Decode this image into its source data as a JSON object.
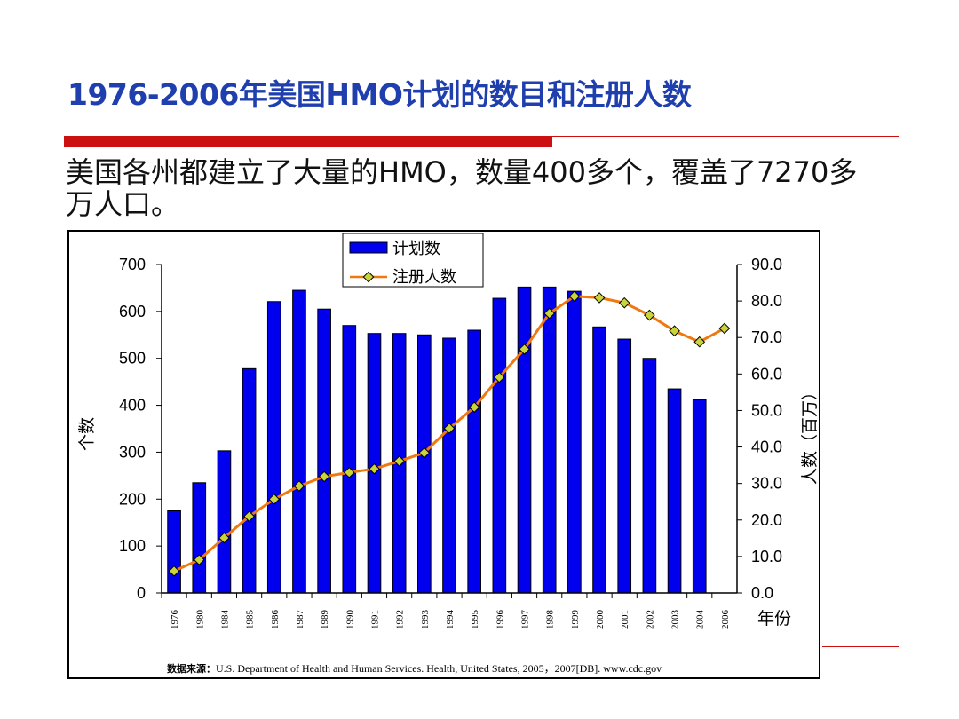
{
  "title": "1976-2006年美国HMO计划的数目和注册人数",
  "body_text": "美国各州都建立了大量的HMO，数量400多个，覆盖了7270多万人口。",
  "source": {
    "label": "数据来源：",
    "text": "U.S. Department of Health and Human Services. Health, United States, 2005，2007[DB]. www.cdc.gov"
  },
  "colors": {
    "title": "#1f3fae",
    "bar_fill": "#0000ee",
    "line": "#f07810",
    "marker": "#c8d43a",
    "rule": "#cc1010"
  },
  "chart_data": {
    "type": "bar",
    "categories": [
      "1976",
      "1980",
      "1984",
      "1985",
      "1986",
      "1987",
      "1989",
      "1990",
      "1991",
      "1992",
      "1993",
      "1994",
      "1995",
      "1996",
      "1997",
      "1998",
      "1999",
      "2000",
      "2001",
      "2002",
      "2003",
      "2004",
      "2006"
    ],
    "series": [
      {
        "name": "计划数",
        "type": "bar",
        "axis": "left",
        "values": [
          175,
          235,
          303,
          478,
          621,
          645,
          605,
          570,
          553,
          553,
          550,
          543,
          560,
          628,
          652,
          652,
          643,
          567,
          541,
          500,
          435,
          412,
          null
        ]
      },
      {
        "name": "注册人数",
        "type": "line",
        "axis": "right",
        "values": [
          6.0,
          9.1,
          15.1,
          21.0,
          25.7,
          29.3,
          31.9,
          33.0,
          34.0,
          36.1,
          38.4,
          45.1,
          50.9,
          59.1,
          66.8,
          76.6,
          81.3,
          80.9,
          79.5,
          76.1,
          71.8,
          68.8,
          72.5
        ]
      }
    ],
    "xlabel": "年份",
    "ylabel": "个数",
    "y2label": "人数（百万）",
    "ylim": [
      0,
      700
    ],
    "yticks": [
      "0",
      "100",
      "200",
      "300",
      "400",
      "500",
      "600",
      "700"
    ],
    "y2lim": [
      0,
      90
    ],
    "y2ticks": [
      "0.0",
      "10.0",
      "20.0",
      "30.0",
      "40.0",
      "50.0",
      "60.0",
      "70.0",
      "80.0",
      "90.0"
    ],
    "legend": "top-center",
    "grid": false
  }
}
